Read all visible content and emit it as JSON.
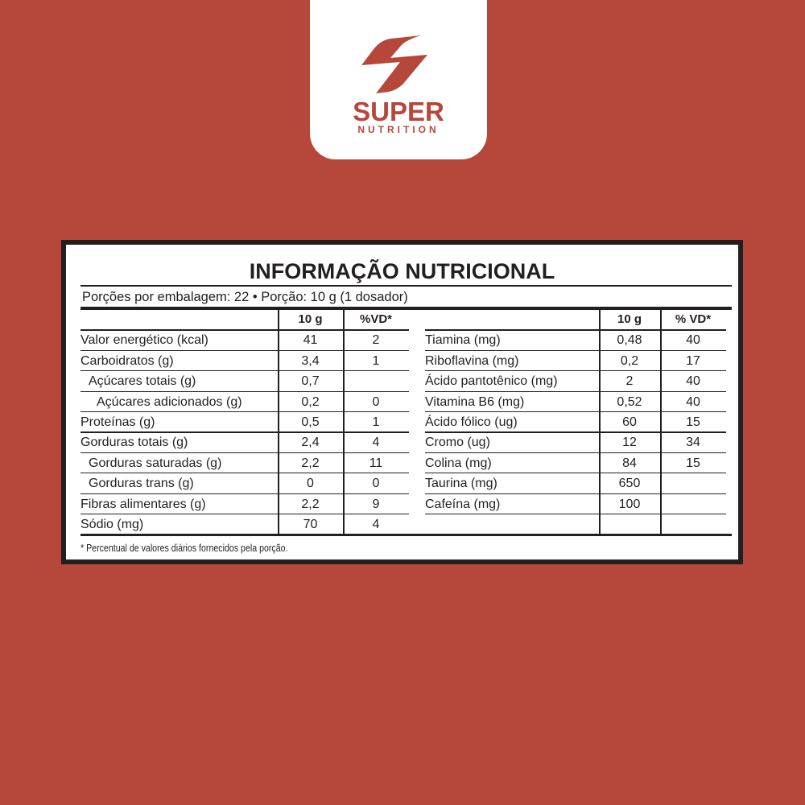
{
  "brand": {
    "name": "SUPER",
    "sub": "NUTRITION",
    "color": "#b5473b",
    "logo_icon": "lightning-s-icon"
  },
  "label": {
    "title": "INFORMAÇÃO NUTRICIONAL",
    "serving": "Porções por embalagem: 22 • Porção: 10 g (1 dosador)",
    "left_headers": [
      "",
      "10 g",
      "%VD*"
    ],
    "right_headers": [
      "",
      "10 g",
      "% VD*"
    ],
    "left_rows": [
      {
        "name": "Valor energético (kcal)",
        "amount": "41",
        "vd": "2",
        "indent": 0
      },
      {
        "name": "Carboidratos (g)",
        "amount": "3,4",
        "vd": "1",
        "indent": 0
      },
      {
        "name": "Açúcares totais (g)",
        "amount": "0,7",
        "vd": "",
        "indent": 1
      },
      {
        "name": "Açúcares adicionados (g)",
        "amount": "0,2",
        "vd": "0",
        "indent": 2
      },
      {
        "name": "Proteínas (g)",
        "amount": "0,5",
        "vd": "1",
        "indent": 0
      },
      {
        "name": "Gorduras totais (g)",
        "amount": "2,4",
        "vd": "4",
        "indent": 0
      },
      {
        "name": "Gorduras saturadas (g)",
        "amount": "2,2",
        "vd": "11",
        "indent": 1
      },
      {
        "name": "Gorduras trans (g)",
        "amount": "0",
        "vd": "0",
        "indent": 1
      },
      {
        "name": "Fibras alimentares (g)",
        "amount": "2,2",
        "vd": "9",
        "indent": 0
      },
      {
        "name": "Sódio (mg)",
        "amount": "70",
        "vd": "4",
        "indent": 0
      }
    ],
    "right_rows": [
      {
        "name": "Tiamina (mg)",
        "amount": "0,48",
        "vd": "40"
      },
      {
        "name": "Riboflavina (mg)",
        "amount": "0,2",
        "vd": "17"
      },
      {
        "name": "Ácido pantotênico (mg)",
        "amount": "2",
        "vd": "40"
      },
      {
        "name": "Vitamina B6 (mg)",
        "amount": "0,52",
        "vd": "40"
      },
      {
        "name": "Ácido fólico (ug)",
        "amount": "60",
        "vd": "15"
      },
      {
        "name": "Cromo (ug)",
        "amount": "12",
        "vd": "34"
      },
      {
        "name": "Colina (mg)",
        "amount": "84",
        "vd": "15"
      },
      {
        "name": "Taurina (mg)",
        "amount": "650",
        "vd": ""
      },
      {
        "name": "Cafeína (mg)",
        "amount": "100",
        "vd": ""
      },
      {
        "name": "",
        "amount": "",
        "vd": ""
      }
    ],
    "footnote": "* Percentual de valores diários fornecidos pela porção."
  }
}
